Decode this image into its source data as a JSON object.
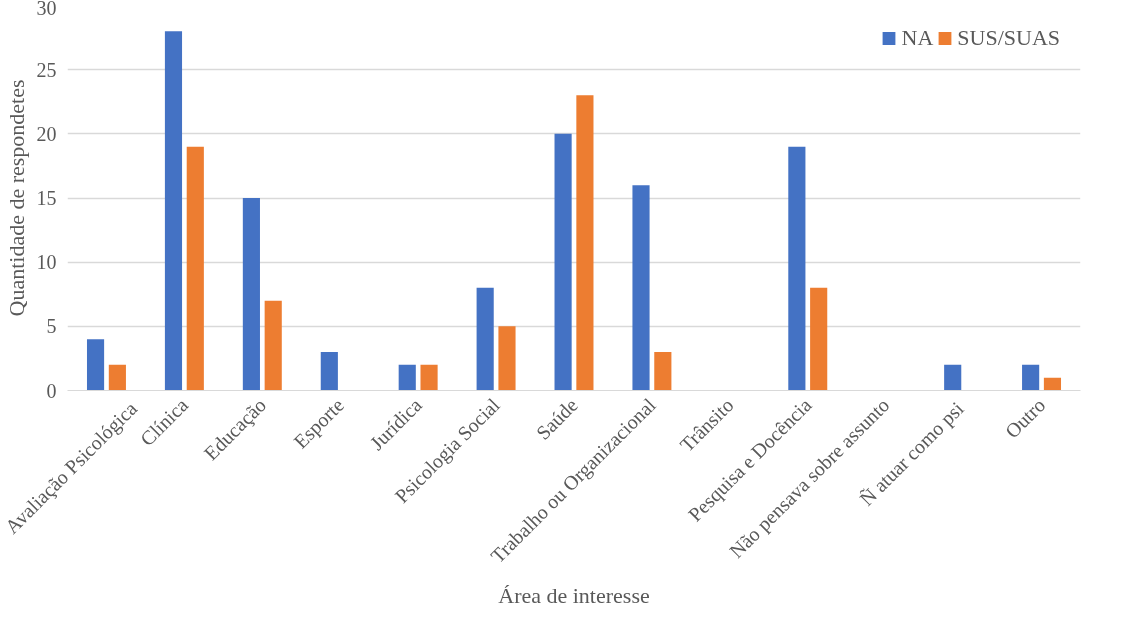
{
  "chart_data": {
    "type": "bar",
    "xlabel": "Área de interesse",
    "ylabel": "Quantidade de respondetes",
    "categories": [
      "Avaliação  Psicológica",
      "Clínica",
      "Educação",
      "Esporte",
      "Jurídica",
      "Psicologia Social",
      "Saúde",
      "Trabalho ou Organizacional",
      "Trânsito",
      "Pesquisa e Docência",
      "Não pensava sobre assunto",
      "Ñ  atuar como psi",
      "Outro"
    ],
    "series": [
      {
        "name": "NA",
        "color": "#4472c4",
        "values": [
          4,
          28,
          15,
          3,
          2,
          8,
          20,
          16,
          0,
          19,
          0,
          2,
          2
        ]
      },
      {
        "name": "SUS/SUAS",
        "color": "#ed7d31",
        "values": [
          2,
          19,
          7,
          0,
          2,
          5,
          23,
          3,
          0,
          8,
          0,
          0,
          1
        ]
      }
    ],
    "ylim": [
      0,
      30
    ],
    "yticks": [
      0,
      5,
      10,
      15,
      20,
      25,
      30
    ],
    "grid": "y",
    "legend": "top right"
  }
}
